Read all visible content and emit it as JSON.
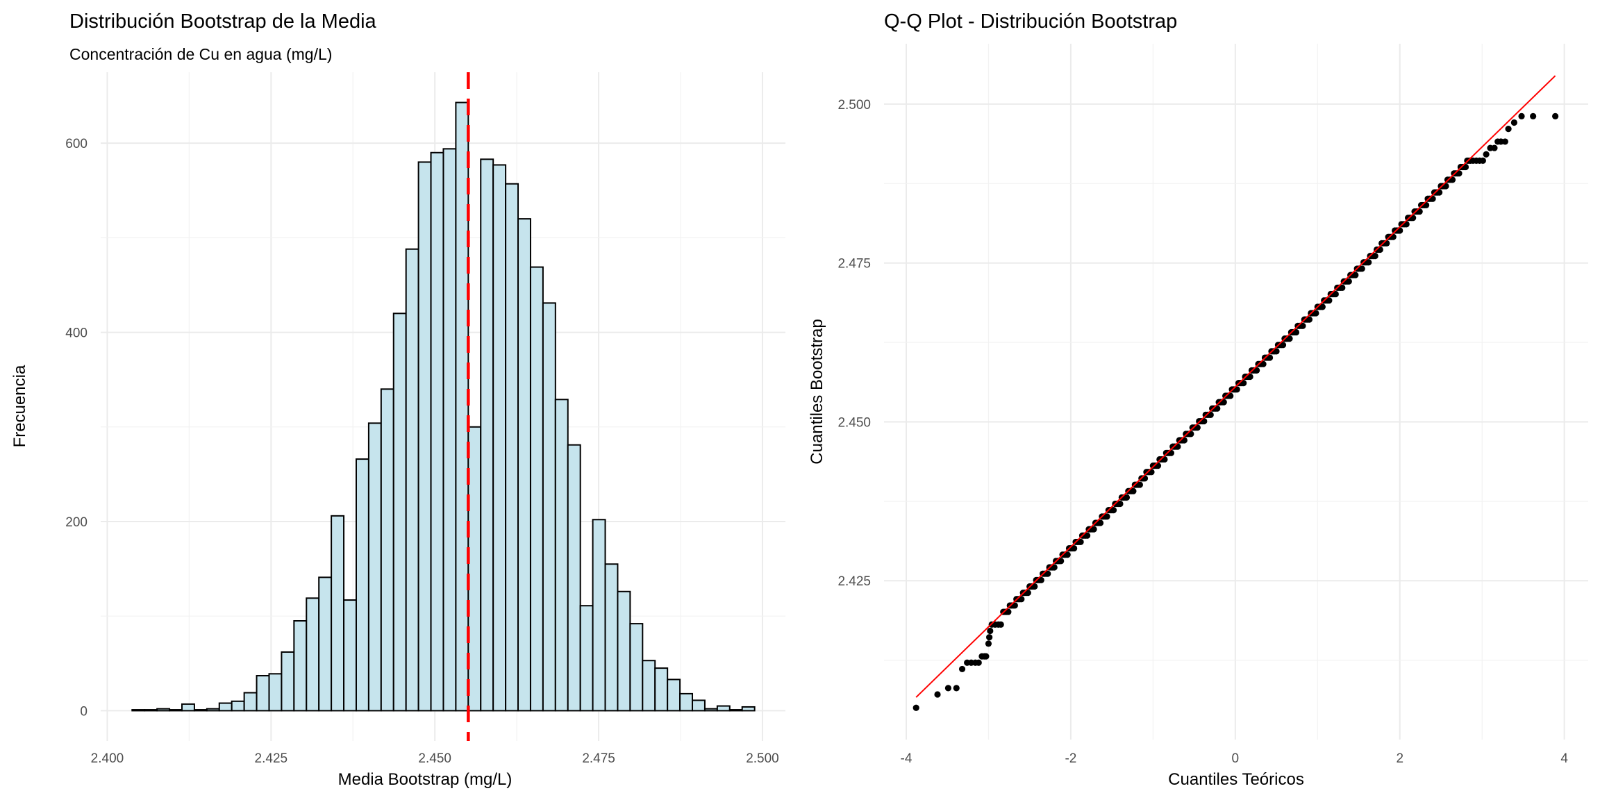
{
  "chart_data": [
    {
      "type": "bar",
      "title": "Distribución Bootstrap de la Media",
      "subtitle": "Concentración de Cu en agua (mg/L)",
      "xlabel": "Media Bootstrap (mg/L)",
      "ylabel": "Frecuencia",
      "bin_start": 2.4038,
      "bin_width": 0.0019,
      "values": [
        1,
        1,
        2,
        1,
        7,
        1,
        2,
        8,
        10,
        19,
        37,
        39,
        62,
        95,
        119,
        141,
        206,
        117,
        266,
        304,
        340,
        420,
        488,
        580,
        590,
        594,
        643,
        300,
        583,
        577,
        557,
        520,
        469,
        431,
        329,
        281,
        111,
        202,
        155,
        126,
        92,
        53,
        45,
        33,
        18,
        11,
        2,
        5,
        1,
        4
      ],
      "mean_line": 2.4551,
      "mean_line_color": "#ff0000",
      "bar_fill": "#c6e4ed",
      "bar_edge": "#000000",
      "xlim": [
        2.399,
        2.5035
      ],
      "ylim": [
        -32,
        675
      ],
      "xticks": [
        "2.400",
        "2.425",
        "2.450",
        "2.475",
        "2.500"
      ],
      "yticks": [
        "0",
        "200",
        "400",
        "600"
      ],
      "grid": true
    },
    {
      "type": "scatter",
      "title": "Q-Q Plot - Distribución Bootstrap",
      "xlabel": "Cuantiles Teóricos",
      "ylabel": "Cuantiles Bootstrap",
      "xlim": [
        -4.27,
        4.29
      ],
      "ylim": [
        2.4,
        2.5095
      ],
      "xticks": [
        "-4",
        "-2",
        "0",
        "2",
        "4"
      ],
      "yticks": [
        "2.425",
        "2.450",
        "2.475",
        "2.500"
      ],
      "reference_line": {
        "intercept": 2.4555,
        "slope": 0.012587,
        "x_range": [
          -3.88,
          3.89
        ],
        "color": "#ff0000"
      },
      "bulk": {
        "x_range": [
          -2.82,
          2.87
        ],
        "step": 0.02,
        "quantum": 0.001
      },
      "tail_points": [
        [
          -3.88,
          2.405
        ],
        [
          -3.62,
          2.4071
        ],
        [
          -3.49,
          2.4081
        ],
        [
          -3.39,
          2.4081
        ],
        [
          -3.32,
          2.4111
        ],
        [
          -3.26,
          2.4121
        ],
        [
          -3.21,
          2.4121
        ],
        [
          -3.16,
          2.4121
        ],
        [
          -3.12,
          2.4121
        ],
        [
          -3.08,
          2.4131
        ],
        [
          -3.05,
          2.4131
        ],
        [
          -3.03,
          2.4131
        ],
        [
          -3.0,
          2.4151
        ],
        [
          -2.99,
          2.4161
        ],
        [
          -2.98,
          2.4171
        ],
        [
          -2.96,
          2.4181
        ],
        [
          -2.92,
          2.4181
        ],
        [
          -2.88,
          2.4181
        ],
        [
          -2.85,
          2.4181
        ],
        [
          2.89,
          2.4911
        ],
        [
          2.93,
          2.4911
        ],
        [
          2.97,
          2.4911
        ],
        [
          3.01,
          2.4911
        ],
        [
          3.05,
          2.4921
        ],
        [
          3.1,
          2.4931
        ],
        [
          3.15,
          2.4931
        ],
        [
          3.19,
          2.4941
        ],
        [
          3.23,
          2.4941
        ],
        [
          3.28,
          2.4941
        ],
        [
          3.32,
          2.4961
        ],
        [
          3.39,
          2.4971
        ],
        [
          3.48,
          2.4981
        ],
        [
          3.62,
          2.4981
        ],
        [
          3.89,
          2.4981
        ]
      ],
      "grid": true
    }
  ]
}
